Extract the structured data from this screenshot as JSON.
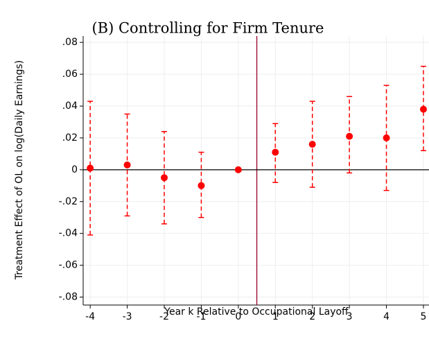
{
  "chart_data": {
    "type": "errorbar",
    "title": "(B) Controlling for Firm Tenure",
    "x_label": "Year k Relative to Occupational Layoff",
    "y_label": "Treatment Effect of OL on log(Daily Earnings)",
    "x": [
      -4,
      -3,
      -2,
      -1,
      0,
      1,
      2,
      3,
      4,
      5
    ],
    "series": [
      {
        "color": "#ff0000",
        "values": [
          0.001,
          0.003,
          -0.005,
          -0.01,
          0,
          0.011,
          0.016,
          0.021,
          0.02,
          0.038
        ],
        "lower": [
          -0.041,
          -0.029,
          -0.034,
          -0.03,
          null,
          -0.008,
          -0.011,
          -0.002,
          -0.013,
          0.012
        ],
        "upper": [
          0.043,
          0.035,
          0.024,
          0.011,
          null,
          0.029,
          0.043,
          0.046,
          0.053,
          0.065
        ]
      }
    ],
    "xlim": [
      -4.19,
      5.15
    ],
    "ylim": [
      -0.085,
      0.084
    ],
    "xticks": [
      -4,
      -3,
      -2,
      -1,
      0,
      1,
      2,
      3,
      4,
      5
    ],
    "yticks": [
      {
        "value": -0.08,
        "label": "-.08"
      },
      {
        "value": -0.06,
        "label": "-.06"
      },
      {
        "value": -0.04,
        "label": "-.04"
      },
      {
        "value": -0.02,
        "label": "-.02"
      },
      0,
      {
        "value": 0.02,
        "label": ".02"
      },
      {
        "value": 0.04,
        "label": ".04"
      },
      {
        "value": 0.06,
        "label": ".06"
      },
      {
        "value": 0.08,
        "label": ".08"
      }
    ],
    "vline": 0.5,
    "vline_color": "#99002b",
    "hline": 0,
    "hline_color": "#000000",
    "grid": true
  }
}
